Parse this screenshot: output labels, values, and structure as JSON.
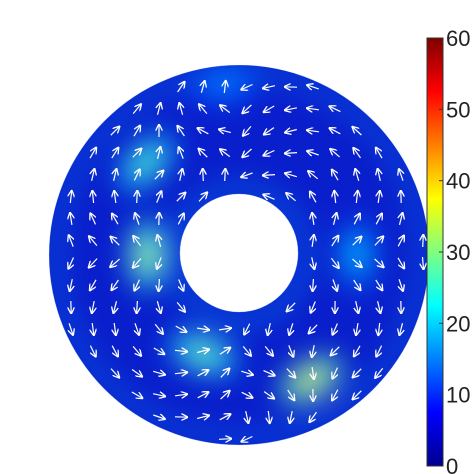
{
  "chart_data": {
    "type": "heatmap",
    "geometry": "annulus",
    "title": "",
    "xlabel": "",
    "ylabel": "",
    "field": "velocity magnitude with direction arrows",
    "colormap": "jet",
    "colorbar": {
      "min": 0,
      "max": 60,
      "ticks": [
        0,
        10,
        20,
        30,
        40,
        50,
        60
      ],
      "tick_labels": [
        "0",
        "10",
        "20",
        "30",
        "40",
        "50",
        "60"
      ],
      "placement": "right"
    },
    "arrow_color": "#ffffff",
    "hotspots": [
      {
        "angle_deg": 135,
        "radius_frac": 0.55,
        "value": 28
      },
      {
        "angle_deg": 180,
        "radius_frac": 0.25,
        "value": 34
      },
      {
        "angle_deg": 300,
        "radius_frac": 0.65,
        "value": 38
      },
      {
        "angle_deg": 250,
        "radius_frac": 0.35,
        "value": 30
      },
      {
        "angle_deg": 0,
        "radius_frac": 0.45,
        "value": 20
      },
      {
        "angle_deg": 95,
        "radius_frac": 0.85,
        "value": 16
      }
    ]
  }
}
